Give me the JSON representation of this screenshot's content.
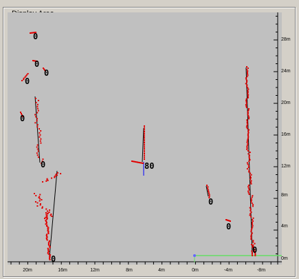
{
  "group": {
    "title": "Display Area"
  },
  "y_axis": {
    "ticks": [
      "28m",
      "24m",
      "20m",
      "16m",
      "12m",
      "8m",
      "4m",
      "0m"
    ]
  },
  "x_axis": {
    "ticks": [
      "20m",
      "16m",
      "12m",
      "8m",
      "4m",
      "0m",
      "-4m",
      "-8m"
    ]
  },
  "objects": [
    {
      "id": "o1",
      "label": "0"
    },
    {
      "id": "o2",
      "label": "0"
    },
    {
      "id": "o3",
      "label": "0"
    },
    {
      "id": "o4",
      "label": "0"
    },
    {
      "id": "o5",
      "label": "0"
    },
    {
      "id": "o6",
      "label": "0"
    },
    {
      "id": "o7",
      "label": "0"
    },
    {
      "id": "o8",
      "label": "80"
    },
    {
      "id": "o9",
      "label": "0"
    },
    {
      "id": "o10",
      "label": "0"
    },
    {
      "id": "o11",
      "label": "0"
    }
  ],
  "colors": {
    "background": "#c0c0c0",
    "points": "#e00000",
    "track": "#000000",
    "heading": "#0000ff",
    "sensor_line": "#66dd66"
  }
}
